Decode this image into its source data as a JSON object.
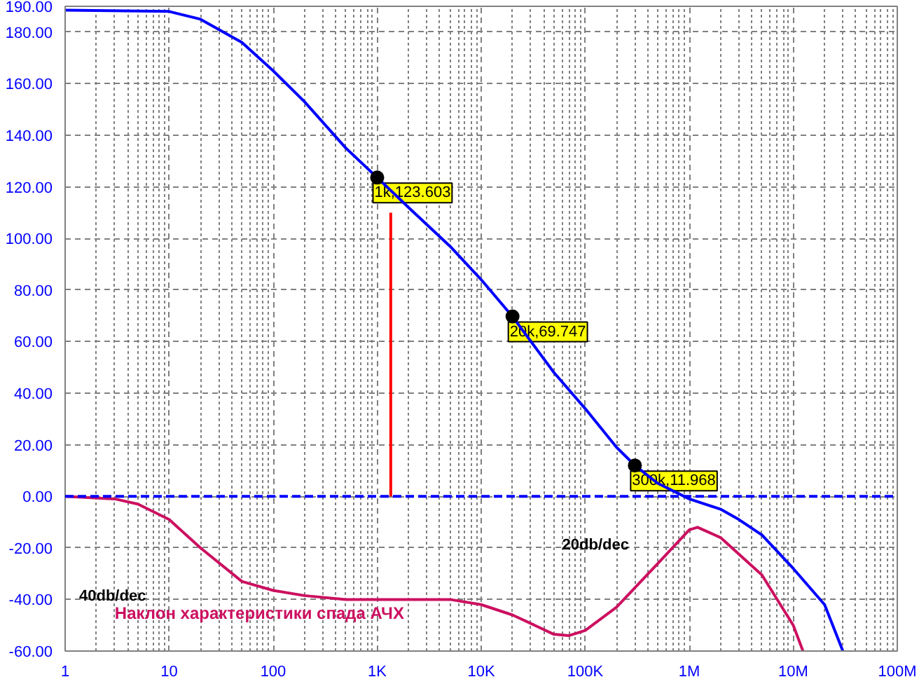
{
  "chart_data": {
    "type": "line",
    "log": "x",
    "grid": true,
    "line_style": "solid",
    "marker": "none",
    "xlim": [
      1,
      100000000
    ],
    "ylim": [
      -60,
      190
    ],
    "xticks": [
      {
        "value": 1,
        "label": "1"
      },
      {
        "value": 10,
        "label": "10"
      },
      {
        "value": 100,
        "label": "100"
      },
      {
        "value": 1000,
        "label": "1K"
      },
      {
        "value": 10000,
        "label": "10K"
      },
      {
        "value": 100000,
        "label": "100K"
      },
      {
        "value": 1000000,
        "label": "1M"
      },
      {
        "value": 10000000,
        "label": "10M"
      },
      {
        "value": 100000000,
        "label": "100M"
      }
    ],
    "yticks": [
      {
        "value": -60,
        "label": "-60.00"
      },
      {
        "value": -40,
        "label": "-40.00"
      },
      {
        "value": -20,
        "label": "-20.00"
      },
      {
        "value": 0,
        "label": "0.00"
      },
      {
        "value": 20,
        "label": "20.00"
      },
      {
        "value": 40,
        "label": "40.00"
      },
      {
        "value": 60,
        "label": "60.00"
      },
      {
        "value": 80,
        "label": "80.00"
      },
      {
        "value": 100,
        "label": "100.00"
      },
      {
        "value": 120,
        "label": "120.00"
      },
      {
        "value": 140,
        "label": "140.00"
      },
      {
        "value": 160,
        "label": "160.00"
      },
      {
        "value": 180,
        "label": "180.00"
      },
      {
        "value": 190,
        "label": "190.00"
      }
    ],
    "series": [
      {
        "color": "#0000ff",
        "x": [
          1,
          10,
          20,
          50,
          100,
          200,
          500,
          1000,
          2000,
          5000,
          10000,
          20000,
          50000,
          100000,
          200000,
          300000,
          500000,
          1000000,
          2000000,
          3000000,
          5000000,
          10000000,
          20000000,
          30000000
        ],
        "values": [
          188.5,
          188,
          185,
          176,
          165,
          153,
          135,
          123.6,
          112,
          97,
          84,
          69.7,
          48,
          34,
          19,
          12,
          5,
          -1,
          -5,
          -9,
          -15,
          -28,
          -42,
          -60
        ]
      },
      {
        "name": "Наклон характеристики спада АЧХ",
        "color": "#cc1060",
        "x": [
          1,
          3,
          5,
          10,
          20,
          50,
          100,
          200,
          500,
          1000,
          5000,
          10000,
          20000,
          50000,
          70000,
          100000,
          200000,
          500000,
          1000000,
          1200000,
          2000000,
          5000000,
          10000000,
          12400000
        ],
        "values": [
          0,
          -1,
          -3,
          -9,
          -20,
          -33,
          -36.5,
          -38.5,
          -40,
          -40,
          -40,
          -42,
          -46,
          -53.5,
          -54,
          -52,
          -43,
          -26,
          -13,
          -12,
          -16,
          -30.5,
          -50,
          -60
        ]
      },
      {
        "color": "#ff0000",
        "x": [
          1350,
          1350
        ],
        "values": [
          0,
          110
        ]
      }
    ],
    "ref_lines": [
      {
        "axis": "y",
        "value": 0,
        "color": "#0000ff",
        "line_style": "dashed"
      }
    ],
    "annotations": [
      {
        "text": "1k,123.603",
        "x": 1000,
        "y": 123.603
      },
      {
        "text": "20k,69.747",
        "x": 20000,
        "y": 69.747
      },
      {
        "text": "300k,11.968",
        "x": 300000,
        "y": 11.968
      },
      "40db/dec",
      "20db/dec"
    ]
  }
}
